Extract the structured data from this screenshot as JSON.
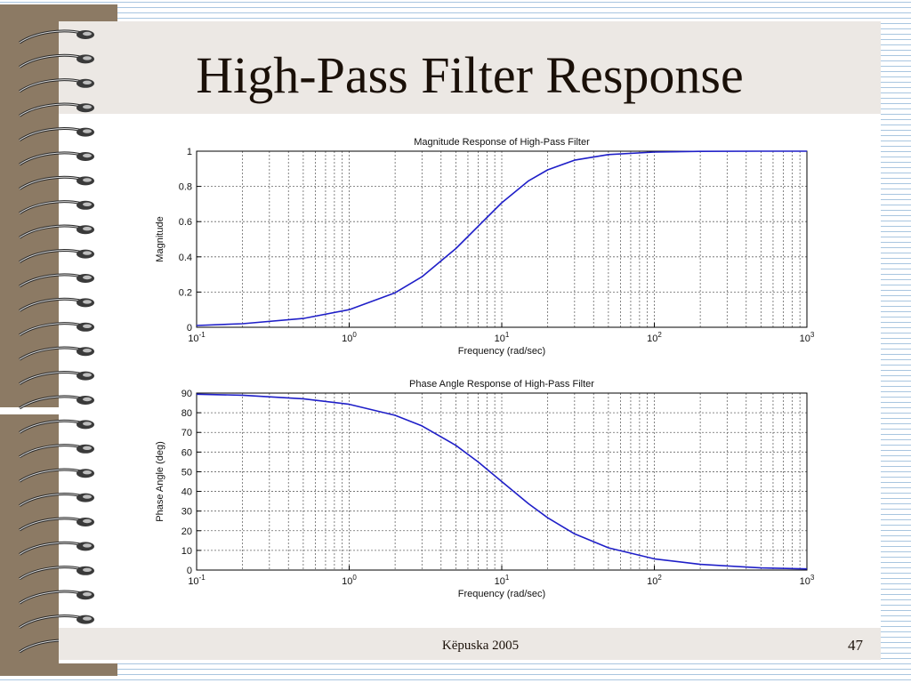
{
  "slide": {
    "title": "High-Pass Filter Response",
    "footer": "Këpuska 2005",
    "page_number": "47"
  },
  "decor": {
    "binding": "spiral-ring-binding"
  },
  "colors": {
    "curve": "#1f1fc8",
    "grid": "#666666",
    "band": "#ece8e4",
    "binding_bar": "#8c7a64"
  },
  "chart_data": [
    {
      "type": "line",
      "title": "Magnitude Response of High-Pass Filter",
      "xlabel": "Frequency (rad/sec)",
      "ylabel": "Magnitude",
      "xscale": "log",
      "xlim": [
        0.1,
        1000
      ],
      "ylim": [
        0,
        1
      ],
      "yticks": [
        0,
        0.2,
        0.4,
        0.6,
        0.8,
        1
      ],
      "ytick_labels": [
        "0",
        "0.2",
        "0.4",
        "0.6",
        "0.8",
        "1"
      ],
      "xtick_labels": [
        {
          "base": "10",
          "exp": "-1",
          "value": 0.1
        },
        {
          "base": "10",
          "exp": "0",
          "value": 1
        },
        {
          "base": "10",
          "exp": "1",
          "value": 10
        },
        {
          "base": "10",
          "exp": "2",
          "value": 100
        },
        {
          "base": "10",
          "exp": "3",
          "value": 1000
        }
      ],
      "grid": true,
      "series": [
        {
          "x": [
            0.1,
            0.2,
            0.5,
            1,
            2,
            3,
            5,
            7,
            10,
            15,
            20,
            30,
            50,
            100,
            200,
            500,
            1000
          ],
          "y": [
            0.01,
            0.02,
            0.05,
            0.1,
            0.196,
            0.287,
            0.447,
            0.573,
            0.707,
            0.832,
            0.894,
            0.949,
            0.981,
            0.995,
            0.999,
            1.0,
            1.0
          ]
        }
      ]
    },
    {
      "type": "line",
      "title": "Phase Angle Response of High-Pass Filter",
      "xlabel": "Frequency (rad/sec)",
      "ylabel": "Phase Angle (deg)",
      "xscale": "log",
      "xlim": [
        0.1,
        1000
      ],
      "ylim": [
        0,
        90
      ],
      "yticks": [
        0,
        10,
        20,
        30,
        40,
        50,
        60,
        70,
        80,
        90
      ],
      "ytick_labels": [
        "0",
        "10",
        "20",
        "30",
        "40",
        "50",
        "60",
        "70",
        "80",
        "90"
      ],
      "xtick_labels": [
        {
          "base": "10",
          "exp": "-1",
          "value": 0.1
        },
        {
          "base": "10",
          "exp": "0",
          "value": 1
        },
        {
          "base": "10",
          "exp": "1",
          "value": 10
        },
        {
          "base": "10",
          "exp": "2",
          "value": 100
        },
        {
          "base": "10",
          "exp": "3",
          "value": 1000
        }
      ],
      "grid": true,
      "series": [
        {
          "x": [
            0.1,
            0.2,
            0.5,
            1,
            2,
            3,
            5,
            7,
            10,
            15,
            20,
            30,
            50,
            100,
            200,
            500,
            1000
          ],
          "y": [
            89.4,
            88.9,
            87.1,
            84.3,
            78.7,
            73.3,
            63.4,
            55.0,
            45.0,
            33.7,
            26.6,
            18.4,
            11.3,
            5.7,
            2.9,
            1.1,
            0.6
          ]
        }
      ]
    }
  ]
}
